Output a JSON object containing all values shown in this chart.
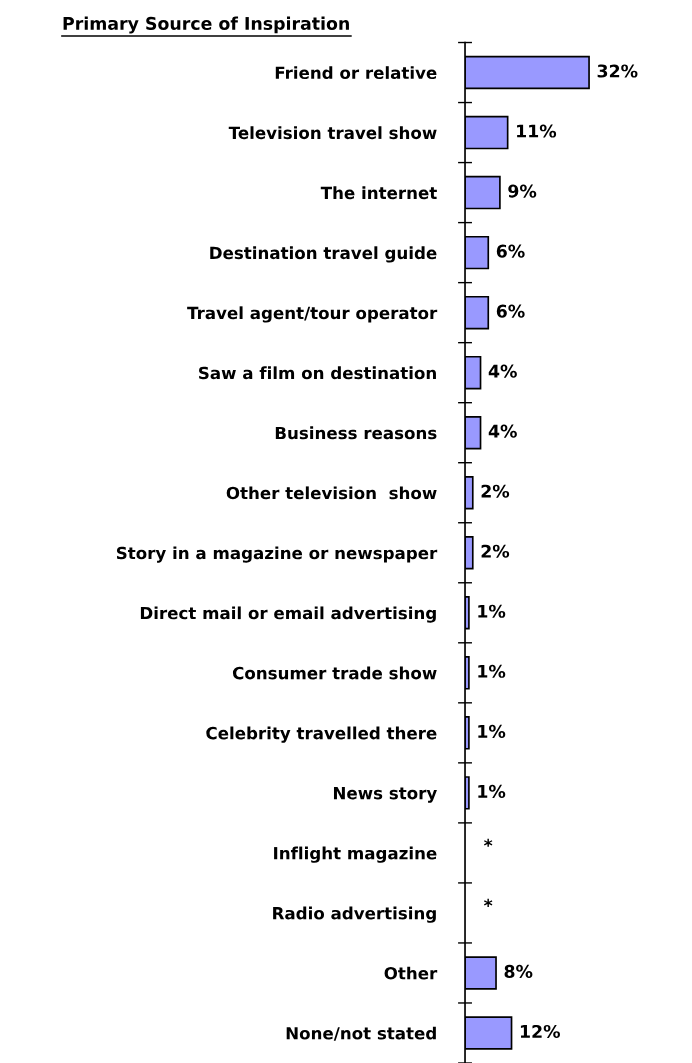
{
  "chart_data": {
    "type": "bar",
    "orientation": "horizontal",
    "title": "Primary Source of Inspiration",
    "categories": [
      "Friend or relative",
      "Television travel show",
      "The internet",
      "Destination travel guide",
      "Travel agent/tour operator",
      "Saw a film on destination",
      "Business reasons",
      "Other television  show",
      "Story in a magazine or newspaper",
      "Direct mail or email advertising",
      "Consumer trade show",
      "Celebrity travelled there",
      "News story",
      "Inflight magazine",
      "Radio advertising",
      "Other",
      "None/not stated"
    ],
    "values": [
      32,
      11,
      9,
      6,
      6,
      4,
      4,
      2,
      2,
      1,
      1,
      1,
      1,
      null,
      null,
      8,
      12
    ],
    "value_labels": [
      "32%",
      "11%",
      "9%",
      "6%",
      "6%",
      "4%",
      "4%",
      "2%",
      "2%",
      "1%",
      "1%",
      "1%",
      "1%",
      "*",
      "*",
      "8%",
      "12%"
    ],
    "color": "#9999ff",
    "grid": false,
    "legend": false,
    "tick_labels": "y"
  }
}
